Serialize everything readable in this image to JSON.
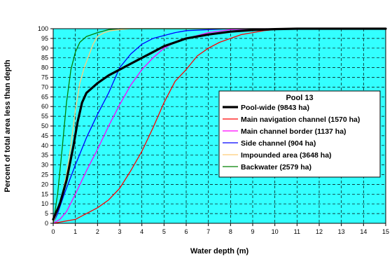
{
  "chart_data": {
    "type": "line",
    "title": "",
    "xlabel": "Water depth (m)",
    "ylabel": "Percent of total area less than depth",
    "xlim": [
      0,
      15
    ],
    "ylim": [
      0,
      100
    ],
    "x_ticks": [
      "0",
      "1",
      "2",
      "3",
      "4",
      "5",
      "6",
      "7",
      "8",
      "9",
      "10",
      "11",
      "12",
      "13",
      "14",
      "15"
    ],
    "y_ticks": [
      "0",
      "5",
      "10",
      "15",
      "20",
      "25",
      "30",
      "35",
      "40",
      "45",
      "50",
      "55",
      "60",
      "65",
      "70",
      "75",
      "80",
      "85",
      "90",
      "95",
      "100"
    ],
    "grid": true,
    "background_color": "#33ffff",
    "legend": {
      "title": "Pool 13",
      "placement": "center-right"
    },
    "series": [
      {
        "name": "Main navigation channel (1570 ha)",
        "color": "#ff0000",
        "width": 1.3,
        "x": [
          0,
          0.5,
          1,
          1.5,
          2,
          2.5,
          3,
          3.5,
          4,
          4.5,
          5,
          5.5,
          6,
          6.5,
          7,
          7.5,
          8,
          8.5,
          9,
          9.5,
          10,
          10.5,
          11,
          15
        ],
        "y": [
          0,
          1,
          2,
          5,
          8,
          12,
          18,
          27,
          37,
          49,
          62,
          73,
          79,
          86,
          90,
          93,
          95,
          97,
          98,
          99,
          99.5,
          100,
          100,
          100
        ]
      },
      {
        "name": "Main channel border (1137 ha)",
        "color": "#ff00ff",
        "width": 1.3,
        "x": [
          0,
          0.3,
          0.6,
          1,
          1.5,
          2,
          2.5,
          3,
          3.5,
          4,
          4.5,
          5,
          5.5,
          6,
          7,
          8,
          9,
          15
        ],
        "y": [
          0,
          2,
          6,
          15,
          27,
          38,
          50,
          61,
          71,
          79,
          85,
          90,
          93,
          95,
          98,
          99.5,
          100,
          100
        ]
      },
      {
        "name": "Side channel (904 ha)",
        "color": "#0000ff",
        "width": 1.3,
        "x": [
          0,
          0.2,
          0.5,
          1,
          1.5,
          2,
          2.5,
          3,
          3.5,
          4,
          4.5,
          5,
          5.5,
          6,
          7,
          8,
          15
        ],
        "y": [
          0,
          5,
          15,
          30,
          44,
          56,
          67,
          80,
          87,
          92,
          95,
          96.5,
          98,
          99,
          99.5,
          100,
          100
        ]
      },
      {
        "name": "Impounded area (3648 ha)",
        "color": "#ffcc77",
        "width": 1.3,
        "x": [
          0,
          0.3,
          0.6,
          0.8,
          1,
          1.2,
          1.4,
          1.6,
          1.8,
          2,
          2.3,
          2.6,
          3,
          3.5,
          15
        ],
        "y": [
          0,
          10,
          25,
          40,
          58,
          72,
          80,
          86,
          92,
          96,
          98,
          99,
          99.5,
          100,
          100
        ]
      },
      {
        "name": "Backwater (2579 ha)",
        "color": "#008000",
        "width": 1.3,
        "x": [
          0,
          0.2,
          0.4,
          0.6,
          0.8,
          1,
          1.2,
          1.5,
          2,
          2.5,
          3,
          15
        ],
        "y": [
          0,
          15,
          38,
          62,
          79,
          88,
          93,
          96,
          98,
          99.5,
          100,
          100
        ]
      },
      {
        "name": "Pool-wide (9843 ha)",
        "color": "#000000",
        "width": 3.2,
        "x": [
          0,
          0.3,
          0.6,
          0.9,
          1.1,
          1.3,
          1.5,
          2,
          2.5,
          3,
          3.5,
          4,
          4.5,
          5,
          5.5,
          6,
          7,
          8,
          9,
          10,
          11,
          15
        ],
        "y": [
          2,
          10,
          22,
          39,
          52,
          62,
          67,
          72,
          76,
          79,
          82,
          85,
          88,
          91,
          93,
          95,
          97,
          98.5,
          99.3,
          99.8,
          100,
          100
        ]
      }
    ],
    "legend_order": [
      "Pool-wide (9843 ha)",
      "Main navigation channel (1570 ha)",
      "Main channel border (1137 ha)",
      "Side channel (904 ha)",
      "Impounded area (3648 ha)",
      "Backwater (2579 ha)"
    ]
  }
}
